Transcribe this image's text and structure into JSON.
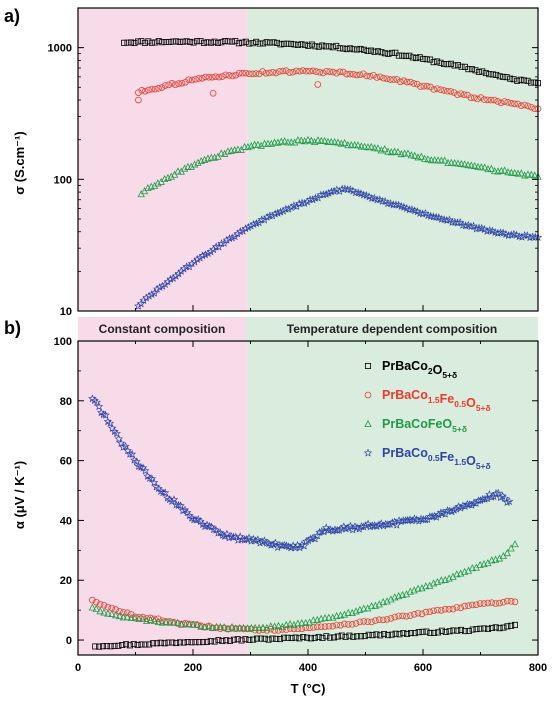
{
  "colors": {
    "region_left": "#f7dbe9",
    "region_right": "#d9ecdd",
    "series": [
      "#000000",
      "#ee3a2c",
      "#1f9a48",
      "#2e44a6"
    ]
  },
  "chart_data": [
    {
      "type": "scatter",
      "panel_label": "a)",
      "xlim": [
        0,
        800
      ],
      "ylabel": "σ (S.cm⁻¹)",
      "yscale": "log",
      "ylim": [
        10,
        2000
      ],
      "y_ticks": [
        "10",
        "100",
        "1000"
      ],
      "regions": [
        {
          "from": 0,
          "to": 295,
          "color": "#f7dbe9"
        },
        {
          "from": 295,
          "to": 800,
          "color": "#d9ecdd"
        }
      ],
      "series": [
        {
          "marker": "square",
          "color": "#000000",
          "points": [
            [
              80,
              1100
            ],
            [
              150,
              1110
            ],
            [
              200,
              1110
            ],
            [
              250,
              1105
            ],
            [
              300,
              1095
            ],
            [
              350,
              1075
            ],
            [
              400,
              1050
            ],
            [
              450,
              1010
            ],
            [
              500,
              960
            ],
            [
              550,
              900
            ],
            [
              600,
              820
            ],
            [
              650,
              740
            ],
            [
              700,
              660
            ],
            [
              750,
              580
            ],
            [
              800,
              540
            ]
          ]
        },
        {
          "marker": "circle",
          "color": "#ee3a2c",
          "points": [
            [
              105,
              460
            ],
            [
              150,
              510
            ],
            [
              200,
              570
            ],
            [
              250,
              610
            ],
            [
              300,
              640
            ],
            [
              350,
              655
            ],
            [
              400,
              660
            ],
            [
              450,
              650
            ],
            [
              500,
              620
            ],
            [
              550,
              575
            ],
            [
              600,
              510
            ],
            [
              650,
              455
            ],
            [
              700,
              410
            ],
            [
              750,
              380
            ],
            [
              800,
              345
            ]
          ],
          "outliers": [
            [
              105,
              400
            ],
            [
              235,
              450
            ],
            [
              417,
              525
            ]
          ]
        },
        {
          "marker": "triangle",
          "color": "#1f9a48",
          "points": [
            [
              110,
              78
            ],
            [
              150,
              100
            ],
            [
              200,
              128
            ],
            [
              250,
              155
            ],
            [
              300,
              178
            ],
            [
              350,
              192
            ],
            [
              400,
              196
            ],
            [
              450,
              190
            ],
            [
              500,
              176
            ],
            [
              550,
              162
            ],
            [
              600,
              146
            ],
            [
              650,
              133
            ],
            [
              700,
              122
            ],
            [
              750,
              113
            ],
            [
              800,
              105
            ]
          ]
        },
        {
          "marker": "star",
          "color": "#2e44a6",
          "points": [
            [
              105,
              11
            ],
            [
              130,
              13.5
            ],
            [
              160,
              17
            ],
            [
              200,
              23
            ],
            [
              250,
              32
            ],
            [
              300,
              44
            ],
            [
              350,
              56
            ],
            [
              400,
              68
            ],
            [
              440,
              80
            ],
            [
              470,
              85
            ],
            [
              500,
              75
            ],
            [
              550,
              64
            ],
            [
              600,
              55
            ],
            [
              650,
              48
            ],
            [
              700,
              42
            ],
            [
              750,
              38
            ],
            [
              800,
              36
            ]
          ]
        }
      ]
    },
    {
      "type": "scatter",
      "panel_label": "b)",
      "xlim": [
        0,
        800
      ],
      "xlabel": "T (°C)",
      "x_ticks": [
        "0",
        "200",
        "400",
        "600",
        "800"
      ],
      "ylabel": "α (μV / K⁻¹)",
      "ylim": [
        -5,
        100
      ],
      "y_ticks": [
        "0",
        "20",
        "40",
        "60",
        "80",
        "100"
      ],
      "region_labels": [
        "Constant composition",
        "Temperature dependent composition"
      ],
      "legend_position": "top-right",
      "legend": [
        {
          "marker": "square",
          "color": "#000000",
          "text": "PrBaCo",
          "sub1": "2",
          "mid": "O",
          "sub2": "5+δ"
        },
        {
          "marker": "circle",
          "color": "#ee3a2c",
          "text": "PrBaCo",
          "sub1": "1.5",
          "mid": "Fe",
          "sub2": "0.5",
          "mid2": "O",
          "sub3": "5+δ"
        },
        {
          "marker": "triangle",
          "color": "#1f9a48",
          "text": "PrBaCoFeO",
          "sub1": "5+δ"
        },
        {
          "marker": "star",
          "color": "#2e44a6",
          "text": "PrBaCo",
          "sub1": "0.5",
          "mid": "Fe",
          "sub2": "1.5",
          "mid2": "O",
          "sub3": "5+δ"
        }
      ],
      "series": [
        {
          "marker": "square",
          "color": "#000000",
          "points": [
            [
              30,
              -2
            ],
            [
              100,
              -1.5
            ],
            [
              200,
              -0.5
            ],
            [
              300,
              0.2
            ],
            [
              400,
              0.8
            ],
            [
              500,
              1.5
            ],
            [
              600,
              2.5
            ],
            [
              700,
              3.5
            ],
            [
              750,
              4.5
            ],
            [
              760,
              5
            ]
          ]
        },
        {
          "marker": "circle",
          "color": "#ee3a2c",
          "points": [
            [
              25,
              13.5
            ],
            [
              50,
              11
            ],
            [
              100,
              8
            ],
            [
              150,
              6.5
            ],
            [
              200,
              5
            ],
            [
              250,
              4
            ],
            [
              300,
              3.5
            ],
            [
              350,
              3.5
            ],
            [
              400,
              4
            ],
            [
              450,
              5
            ],
            [
              500,
              6
            ],
            [
              550,
              7.5
            ],
            [
              600,
              9
            ],
            [
              650,
              10.5
            ],
            [
              700,
              12
            ],
            [
              760,
              13
            ]
          ]
        },
        {
          "marker": "triangle",
          "color": "#1f9a48",
          "points": [
            [
              25,
              11
            ],
            [
              50,
              9
            ],
            [
              100,
              7
            ],
            [
              150,
              6
            ],
            [
              200,
              5
            ],
            [
              250,
              4
            ],
            [
              300,
              4
            ],
            [
              350,
              4.5
            ],
            [
              400,
              6
            ],
            [
              450,
              8
            ],
            [
              500,
              10.5
            ],
            [
              550,
              14
            ],
            [
              600,
              17.5
            ],
            [
              650,
              21
            ],
            [
              700,
              25
            ],
            [
              740,
              28
            ],
            [
              760,
              32
            ]
          ]
        },
        {
          "marker": "star",
          "color": "#2e44a6",
          "points": [
            [
              25,
              81
            ],
            [
              50,
              74
            ],
            [
              75,
              66
            ],
            [
              100,
              60
            ],
            [
              125,
              54
            ],
            [
              150,
              49
            ],
            [
              175,
              45
            ],
            [
              200,
              41
            ],
            [
              225,
              38
            ],
            [
              250,
              35.5
            ],
            [
              275,
              34
            ],
            [
              300,
              33.5
            ],
            [
              325,
              32.5
            ],
            [
              350,
              31.5
            ],
            [
              375,
              31
            ],
            [
              390,
              31.5
            ],
            [
              410,
              34
            ],
            [
              430,
              37
            ],
            [
              450,
              37
            ],
            [
              500,
              38
            ],
            [
              550,
              39
            ],
            [
              600,
              40.5
            ],
            [
              650,
              43
            ],
            [
              700,
              47
            ],
            [
              730,
              49
            ],
            [
              750,
              46
            ]
          ]
        }
      ]
    }
  ]
}
